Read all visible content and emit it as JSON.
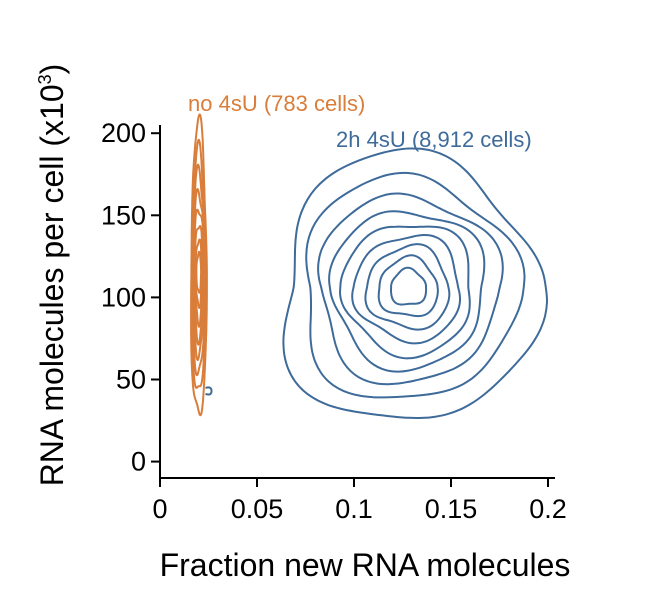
{
  "chart_data": {
    "type": "contour",
    "xlabel": "Fraction new RNA molecules",
    "ylabel_main": "RNA molecules per cell (x10",
    "ylabel_sup": "3",
    "ylabel_close": ")",
    "xlim": [
      0,
      0.2
    ],
    "ylim": [
      -10,
      205
    ],
    "x_ticks": [
      {
        "value": 0,
        "label": "0"
      },
      {
        "value": 0.05,
        "label": "0.05"
      },
      {
        "value": 0.1,
        "label": "0.1"
      },
      {
        "value": 0.15,
        "label": "0.15"
      },
      {
        "value": 0.2,
        "label": "0.2"
      }
    ],
    "y_ticks": [
      {
        "value": 0,
        "label": "0"
      },
      {
        "value": 50,
        "label": "50"
      },
      {
        "value": 100,
        "label": "100"
      },
      {
        "value": 150,
        "label": "150"
      },
      {
        "value": 200,
        "label": "200"
      }
    ],
    "series": [
      {
        "name": "no 4sU (783 cells)",
        "color": "#d97d3a",
        "center": [
          0.02,
          115
        ],
        "levels": [
          {
            "rx": 0.004,
            "ry": 90
          },
          {
            "rx": 0.0035,
            "ry": 75
          },
          {
            "rx": 0.0032,
            "ry": 62
          },
          {
            "rx": 0.0028,
            "ry": 50
          },
          {
            "rx": 0.0025,
            "ry": 40
          },
          {
            "rx": 0.002,
            "ry": 30
          },
          {
            "rx": 0.0016,
            "ry": 20
          },
          {
            "rx": 0.0012,
            "ry": 12
          }
        ]
      },
      {
        "name": "2h 4sU (8,912 cells)",
        "color": "#3e6b9a",
        "center": [
          0.128,
          106
        ],
        "levels": [
          {
            "rx": 0.065,
            "ry": 82
          },
          {
            "rx": 0.055,
            "ry": 68
          },
          {
            "rx": 0.046,
            "ry": 57
          },
          {
            "rx": 0.039,
            "ry": 48
          },
          {
            "rx": 0.033,
            "ry": 40
          },
          {
            "rx": 0.027,
            "ry": 32
          },
          {
            "rx": 0.021,
            "ry": 25
          },
          {
            "rx": 0.015,
            "ry": 18
          },
          {
            "rx": 0.009,
            "ry": 11
          }
        ]
      }
    ]
  }
}
